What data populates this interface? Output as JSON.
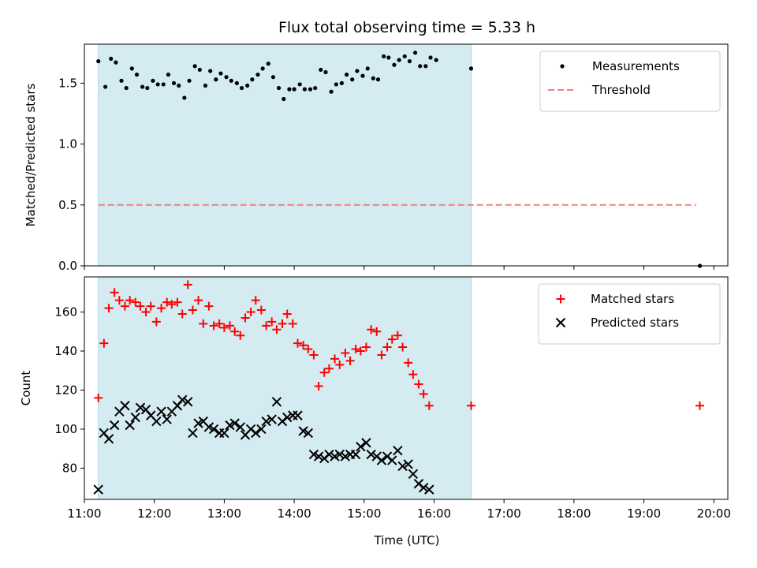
{
  "chart_data": {
    "title": "Flux total observing time = 5.33 h",
    "xlabel": "Time (UTC)",
    "x_unit": "hours UTC",
    "xlim": [
      11.0,
      20.2
    ],
    "x_ticks": [
      11,
      12,
      13,
      14,
      15,
      16,
      17,
      18,
      19,
      20
    ],
    "x_tick_labels": [
      "11:00",
      "12:00",
      "13:00",
      "14:00",
      "15:00",
      "16:00",
      "17:00",
      "18:00",
      "19:00",
      "20:00"
    ],
    "observing_window": {
      "start": 11.2,
      "end": 16.53,
      "color": "#d4ebf1"
    },
    "panels": [
      {
        "type": "scatter",
        "ylabel": "Matched/Predicted stars",
        "ylim": [
          0,
          1.82
        ],
        "y_ticks": [
          0.0,
          0.5,
          1.0,
          1.5
        ],
        "y_tick_labels": [
          "0.0",
          "0.5",
          "1.0",
          "1.5"
        ],
        "legend_position": "top-right",
        "series": [
          {
            "name": "Measurements",
            "marker": "dot",
            "color": "#000000",
            "points": [
              [
                11.2,
                1.68
              ],
              [
                11.3,
                1.47
              ],
              [
                11.38,
                1.7
              ],
              [
                11.45,
                1.67
              ],
              [
                11.53,
                1.52
              ],
              [
                11.6,
                1.46
              ],
              [
                11.68,
                1.62
              ],
              [
                11.75,
                1.57
              ],
              [
                11.83,
                1.47
              ],
              [
                11.9,
                1.46
              ],
              [
                11.98,
                1.52
              ],
              [
                12.05,
                1.49
              ],
              [
                12.13,
                1.49
              ],
              [
                12.2,
                1.57
              ],
              [
                12.28,
                1.5
              ],
              [
                12.35,
                1.48
              ],
              [
                12.43,
                1.38
              ],
              [
                12.5,
                1.52
              ],
              [
                12.58,
                1.64
              ],
              [
                12.65,
                1.61
              ],
              [
                12.73,
                1.48
              ],
              [
                12.8,
                1.6
              ],
              [
                12.88,
                1.53
              ],
              [
                12.95,
                1.58
              ],
              [
                13.03,
                1.55
              ],
              [
                13.1,
                1.52
              ],
              [
                13.18,
                1.5
              ],
              [
                13.25,
                1.46
              ],
              [
                13.33,
                1.48
              ],
              [
                13.4,
                1.53
              ],
              [
                13.48,
                1.57
              ],
              [
                13.55,
                1.62
              ],
              [
                13.63,
                1.66
              ],
              [
                13.7,
                1.55
              ],
              [
                13.78,
                1.46
              ],
              [
                13.85,
                1.37
              ],
              [
                13.93,
                1.45
              ],
              [
                14.0,
                1.45
              ],
              [
                14.08,
                1.49
              ],
              [
                14.15,
                1.45
              ],
              [
                14.23,
                1.45
              ],
              [
                14.3,
                1.46
              ],
              [
                14.38,
                1.61
              ],
              [
                14.45,
                1.59
              ],
              [
                14.53,
                1.43
              ],
              [
                14.6,
                1.49
              ],
              [
                14.68,
                1.5
              ],
              [
                14.75,
                1.57
              ],
              [
                14.83,
                1.53
              ],
              [
                14.9,
                1.6
              ],
              [
                14.98,
                1.56
              ],
              [
                15.05,
                1.62
              ],
              [
                15.13,
                1.54
              ],
              [
                15.2,
                1.53
              ],
              [
                15.28,
                1.72
              ],
              [
                15.35,
                1.71
              ],
              [
                15.43,
                1.65
              ],
              [
                15.5,
                1.69
              ],
              [
                15.58,
                1.72
              ],
              [
                15.65,
                1.68
              ],
              [
                15.73,
                1.75
              ],
              [
                15.8,
                1.64
              ],
              [
                15.88,
                1.64
              ],
              [
                15.95,
                1.71
              ],
              [
                16.03,
                1.69
              ],
              [
                16.53,
                1.62
              ],
              [
                19.8,
                0.0
              ]
            ]
          },
          {
            "name": "Threshold",
            "marker": "dashed-line",
            "color": "#f08080",
            "points": [
              [
                11.2,
                0.5
              ],
              [
                19.75,
                0.5
              ]
            ]
          }
        ]
      },
      {
        "type": "scatter",
        "ylabel": "Count",
        "ylim": [
          64,
          178
        ],
        "y_ticks": [
          80,
          100,
          120,
          140,
          160
        ],
        "y_tick_labels": [
          "80",
          "100",
          "120",
          "140",
          "160"
        ],
        "legend_position": "top-right",
        "series": [
          {
            "name": "Matched stars",
            "marker": "plus",
            "color": "#ff0000",
            "points": [
              [
                11.2,
                116
              ],
              [
                11.28,
                144
              ],
              [
                11.35,
                162
              ],
              [
                11.43,
                170
              ],
              [
                11.5,
                166
              ],
              [
                11.58,
                163
              ],
              [
                11.65,
                166
              ],
              [
                11.73,
                165
              ],
              [
                11.8,
                163
              ],
              [
                11.88,
                160
              ],
              [
                11.95,
                163
              ],
              [
                12.03,
                155
              ],
              [
                12.1,
                162
              ],
              [
                12.18,
                165
              ],
              [
                12.25,
                164
              ],
              [
                12.33,
                165
              ],
              [
                12.4,
                159
              ],
              [
                12.48,
                174
              ],
              [
                12.55,
                161
              ],
              [
                12.63,
                166
              ],
              [
                12.7,
                154
              ],
              [
                12.78,
                163
              ],
              [
                12.85,
                153
              ],
              [
                12.93,
                154
              ],
              [
                13.0,
                152
              ],
              [
                13.08,
                153
              ],
              [
                13.15,
                150
              ],
              [
                13.23,
                148
              ],
              [
                13.3,
                157
              ],
              [
                13.38,
                160
              ],
              [
                13.45,
                166
              ],
              [
                13.53,
                161
              ],
              [
                13.6,
                153
              ],
              [
                13.68,
                155
              ],
              [
                13.75,
                151
              ],
              [
                13.83,
                154
              ],
              [
                13.9,
                159
              ],
              [
                13.98,
                154
              ],
              [
                14.05,
                144
              ],
              [
                14.13,
                143
              ],
              [
                14.2,
                141
              ],
              [
                14.28,
                138
              ],
              [
                14.35,
                122
              ],
              [
                14.43,
                129
              ],
              [
                14.5,
                131
              ],
              [
                14.58,
                136
              ],
              [
                14.65,
                133
              ],
              [
                14.73,
                139
              ],
              [
                14.8,
                135
              ],
              [
                14.88,
                141
              ],
              [
                14.95,
                140
              ],
              [
                15.03,
                142
              ],
              [
                15.1,
                151
              ],
              [
                15.18,
                150
              ],
              [
                15.25,
                138
              ],
              [
                15.33,
                142
              ],
              [
                15.4,
                146
              ],
              [
                15.48,
                148
              ],
              [
                15.55,
                142
              ],
              [
                15.63,
                134
              ],
              [
                15.7,
                128
              ],
              [
                15.78,
                123
              ],
              [
                15.85,
                118
              ],
              [
                15.93,
                112
              ],
              [
                16.53,
                112
              ],
              [
                19.8,
                112
              ]
            ]
          },
          {
            "name": "Predicted stars",
            "marker": "x",
            "color": "#000000",
            "points": [
              [
                11.2,
                69
              ],
              [
                11.28,
                98
              ],
              [
                11.35,
                95
              ],
              [
                11.43,
                102
              ],
              [
                11.5,
                109
              ],
              [
                11.58,
                112
              ],
              [
                11.65,
                102
              ],
              [
                11.73,
                106
              ],
              [
                11.8,
                111
              ],
              [
                11.88,
                110
              ],
              [
                11.95,
                107
              ],
              [
                12.03,
                104
              ],
              [
                12.1,
                109
              ],
              [
                12.18,
                105
              ],
              [
                12.25,
                109
              ],
              [
                12.33,
                112
              ],
              [
                12.4,
                115
              ],
              [
                12.48,
                114
              ],
              [
                12.55,
                98
              ],
              [
                12.63,
                103
              ],
              [
                12.7,
                104
              ],
              [
                12.78,
                101
              ],
              [
                12.85,
                100
              ],
              [
                12.93,
                98
              ],
              [
                13.0,
                98
              ],
              [
                13.08,
                102
              ],
              [
                13.15,
                103
              ],
              [
                13.23,
                101
              ],
              [
                13.3,
                97
              ],
              [
                13.38,
                100
              ],
              [
                13.45,
                98
              ],
              [
                13.53,
                100
              ],
              [
                13.6,
                104
              ],
              [
                13.68,
                105
              ],
              [
                13.75,
                114
              ],
              [
                13.83,
                104
              ],
              [
                13.9,
                106
              ],
              [
                13.98,
                107
              ],
              [
                14.05,
                107
              ],
              [
                14.13,
                99
              ],
              [
                14.2,
                98
              ],
              [
                14.28,
                87
              ],
              [
                14.35,
                86
              ],
              [
                14.43,
                85
              ],
              [
                14.5,
                87
              ],
              [
                14.58,
                86
              ],
              [
                14.65,
                87
              ],
              [
                14.73,
                86
              ],
              [
                14.8,
                87
              ],
              [
                14.88,
                87
              ],
              [
                14.95,
                91
              ],
              [
                15.03,
                93
              ],
              [
                15.1,
                87
              ],
              [
                15.18,
                86
              ],
              [
                15.25,
                84
              ],
              [
                15.33,
                86
              ],
              [
                15.4,
                84
              ],
              [
                15.48,
                89
              ],
              [
                15.55,
                81
              ],
              [
                15.63,
                82
              ],
              [
                15.7,
                77
              ],
              [
                15.78,
                72
              ],
              [
                15.85,
                70
              ],
              [
                15.93,
                69
              ]
            ]
          }
        ]
      }
    ]
  }
}
